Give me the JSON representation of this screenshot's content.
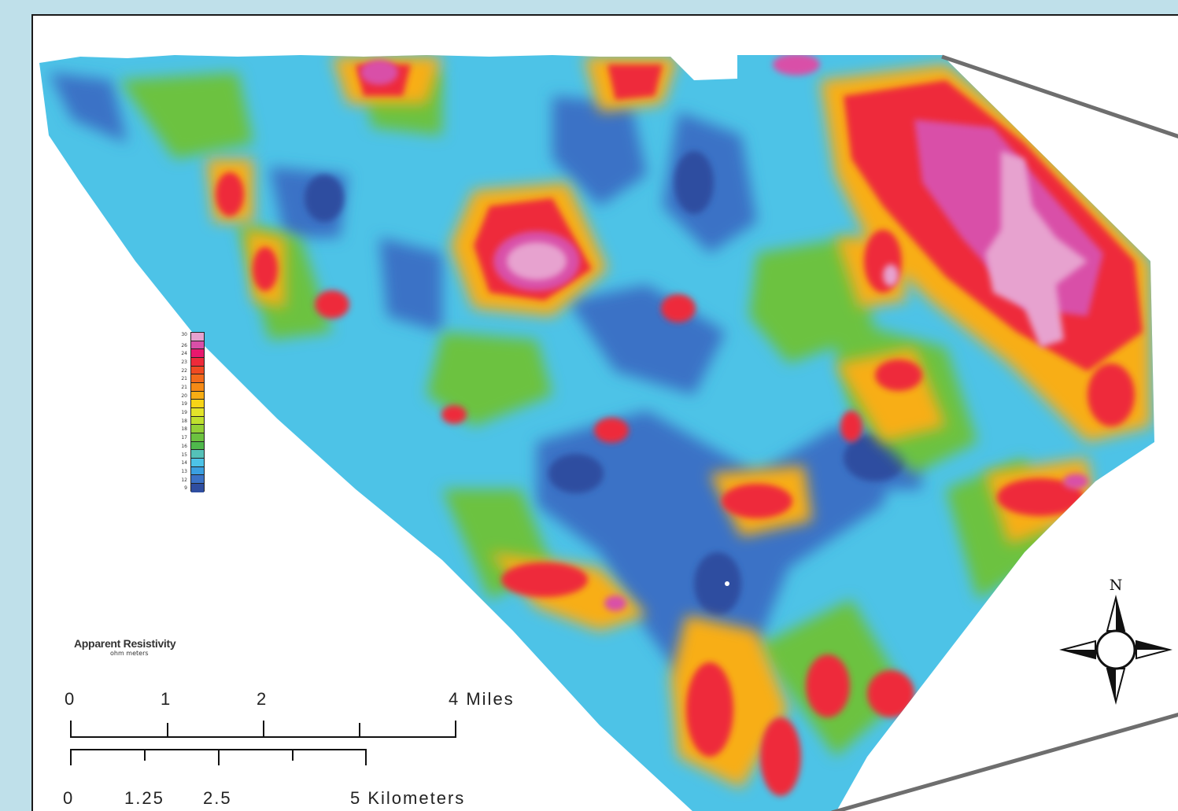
{
  "legend": {
    "title": "Apparent Resistivity",
    "units": "ohm meters",
    "ticks": [
      "30",
      "26",
      "24",
      "23",
      "22",
      "21",
      "21",
      "20",
      "19",
      "19",
      "18",
      "18",
      "17",
      "16",
      "15",
      "14",
      "13",
      "12",
      "9"
    ],
    "colors": [
      "#e7a2cf",
      "#d94fa8",
      "#e8186e",
      "#ee2a3a",
      "#f04a22",
      "#f26a1b",
      "#f58a16",
      "#f8ae14",
      "#f7d417",
      "#e3e42a",
      "#bfe02e",
      "#93d036",
      "#6cc23f",
      "#4fb84c",
      "#55c1b8",
      "#4dc3e7",
      "#3a9fe0",
      "#3b72c6",
      "#2f4ea0"
    ]
  },
  "scale_miles": {
    "labels": [
      "0",
      "1",
      "2",
      "4 Miles"
    ]
  },
  "scale_km": {
    "labels": [
      "0",
      "1.25",
      "2.5",
      "5 Kilometers"
    ]
  },
  "north": {
    "label": "N"
  },
  "colors": {
    "background": "#bfe0ea",
    "frame": "#1a1a1a",
    "outline": "#6e6e6e"
  }
}
